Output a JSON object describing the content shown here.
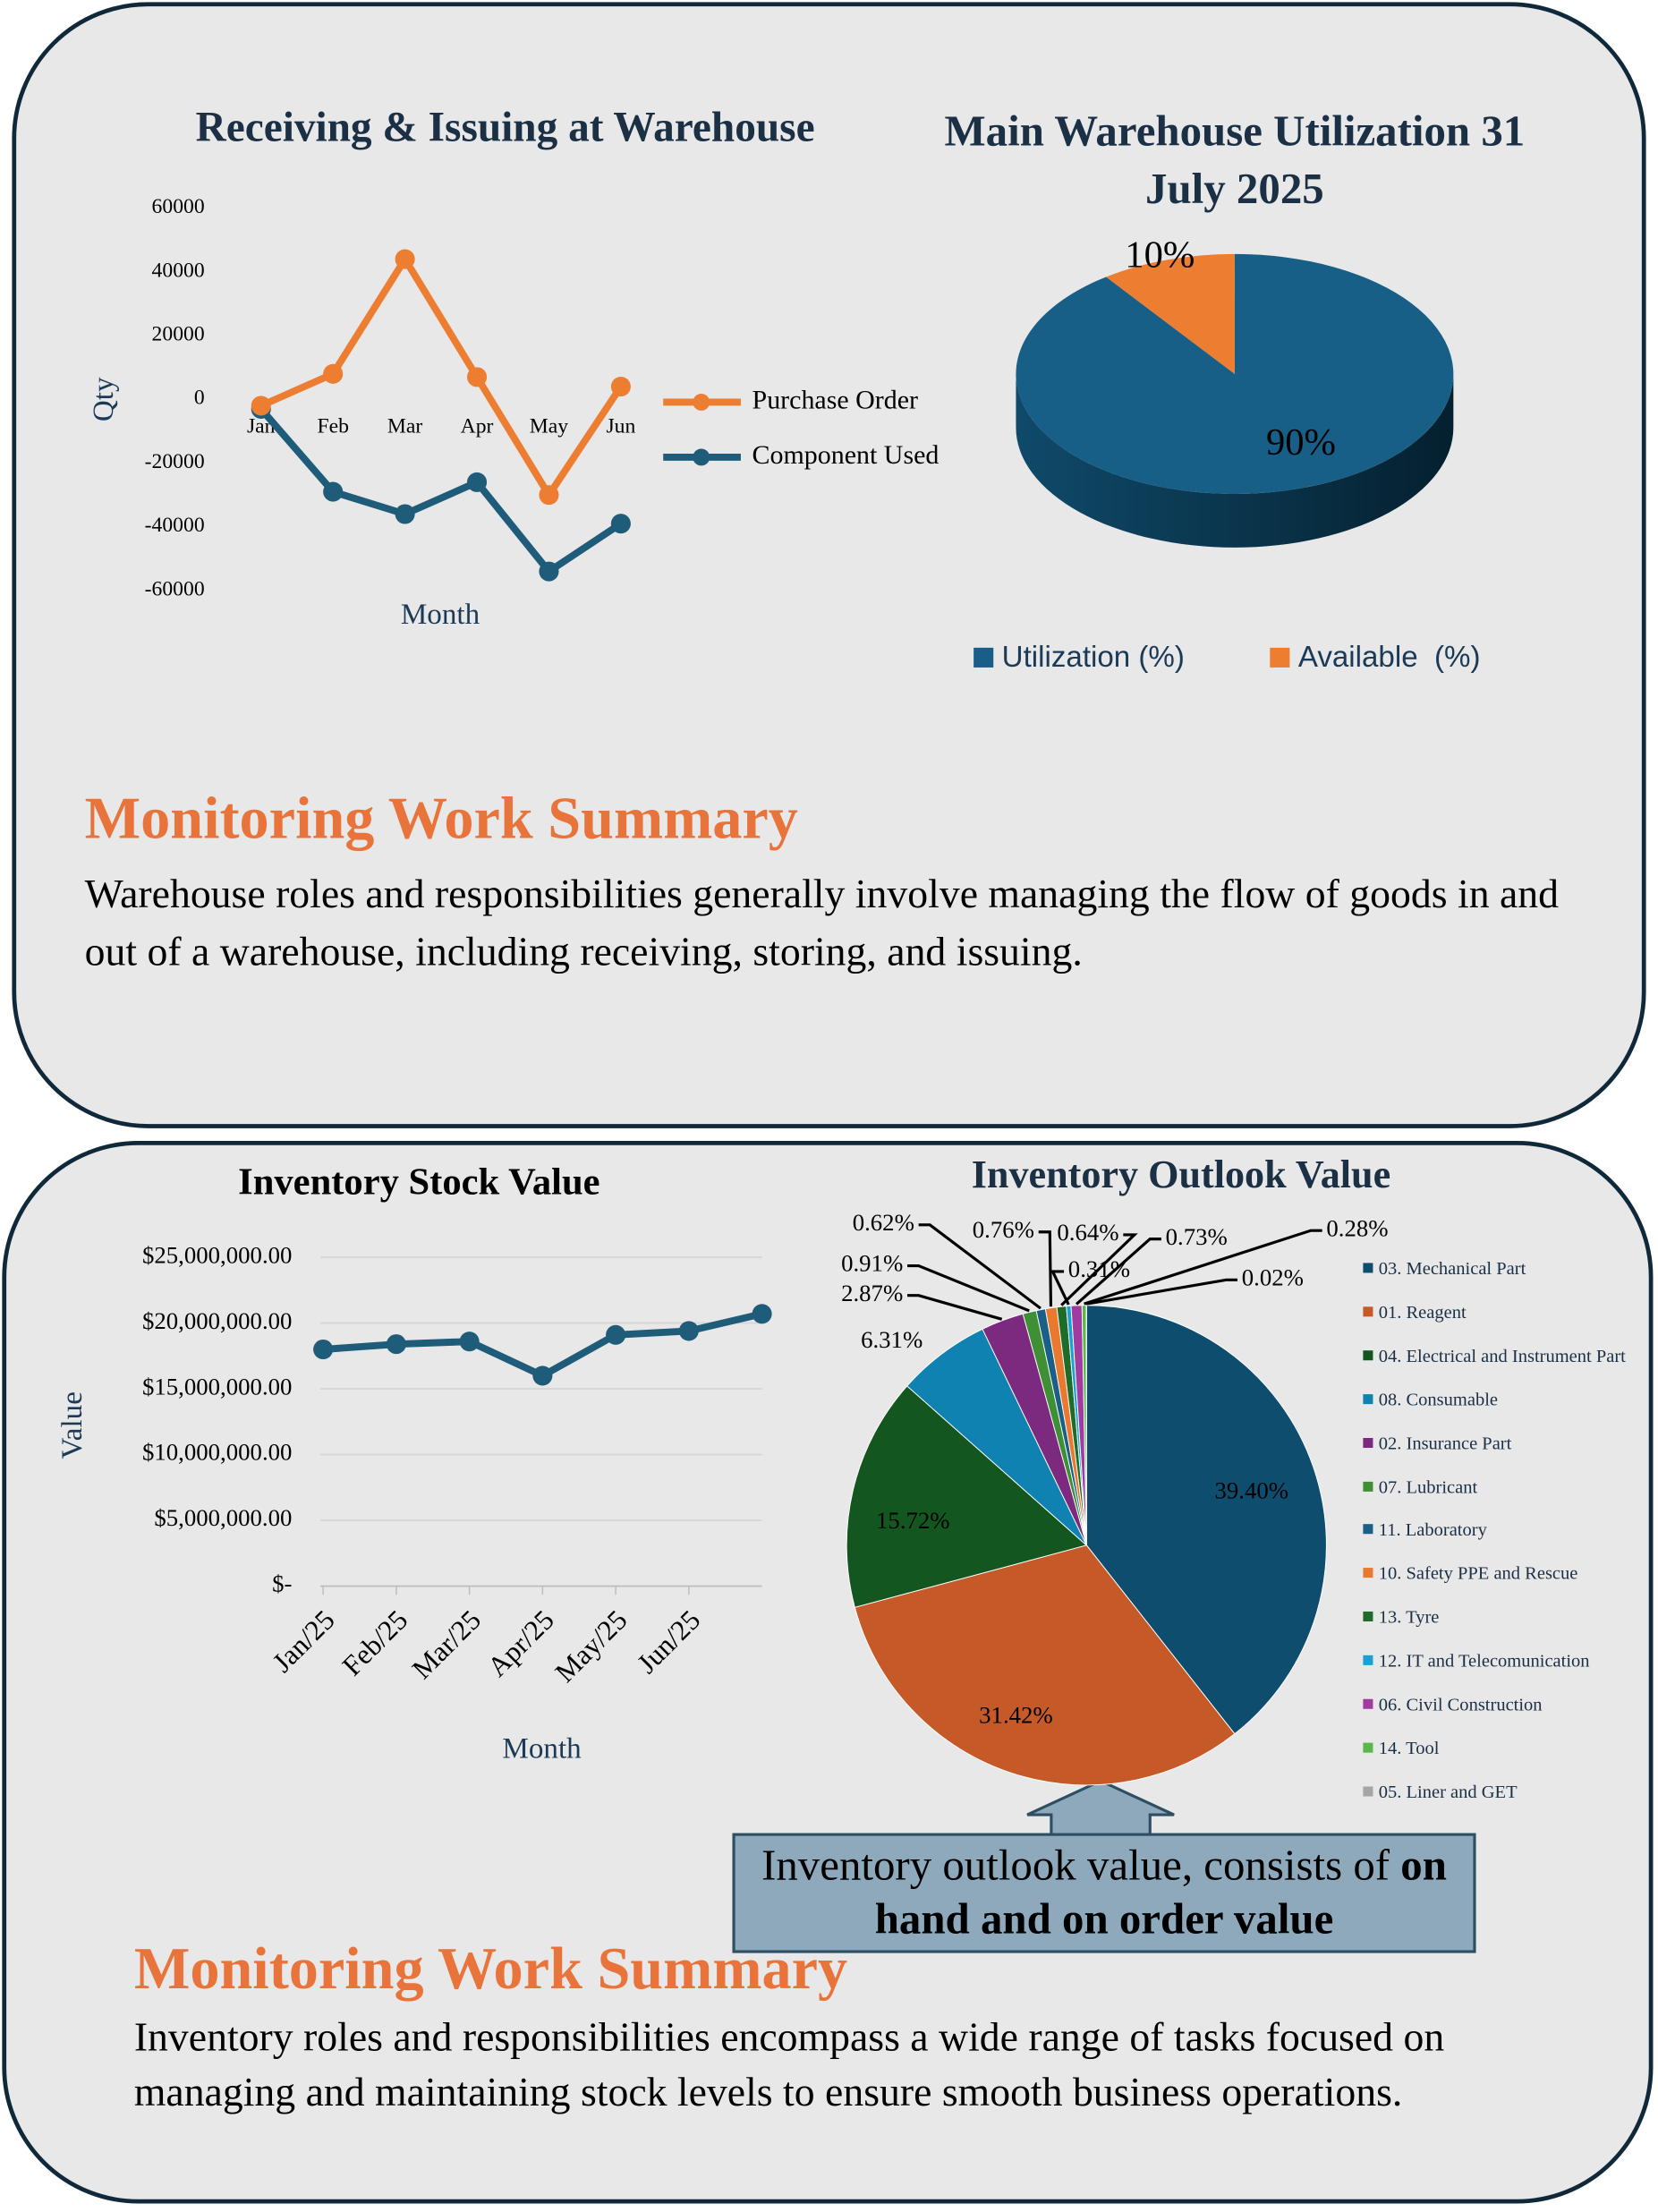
{
  "chart_data": [
    {
      "type": "line",
      "title": "Receiving & Issuing at Warehouse",
      "x_label": "Month",
      "y_label": "Qty",
      "categories": [
        "Jan",
        "Feb",
        "Mar",
        "Apr",
        "May",
        "Jun"
      ],
      "series": [
        {
          "name": "Purchase Order",
          "color": "#ed7d31",
          "values": [
            -2000,
            8000,
            44000,
            7000,
            -30000,
            4000
          ]
        },
        {
          "name": "Component Used",
          "color": "#1f5c7a",
          "values": [
            -3000,
            -29000,
            -36000,
            -26000,
            -54000,
            -39000
          ]
        }
      ],
      "ylim": [
        -60000,
        60000
      ],
      "yticks": [
        -60000,
        -40000,
        -20000,
        0,
        20000,
        40000,
        60000
      ],
      "grid": false,
      "legend": "right"
    },
    {
      "type": "pie3d",
      "title": "Main Warehouse Utilization 31 July 2025",
      "categories": [
        "Utilization (%)",
        "Available  (%)"
      ],
      "values": [
        90,
        10
      ],
      "value_labels": [
        "90%",
        "10%"
      ],
      "colors": [
        "#175f86",
        "#ed7d31"
      ],
      "legend": "bottom"
    },
    {
      "type": "line",
      "title": "Inventory Stock Value",
      "x_label": "Month",
      "y_label": "Value",
      "categories": [
        "Jan/25",
        "Feb/25",
        "Mar/25",
        "Apr/25",
        "May/25",
        "Jun/25",
        null
      ],
      "series": [
        {
          "name": "Value",
          "color": "#1f5c7a",
          "values": [
            18000000,
            18400000,
            18600000,
            16000000,
            19100000,
            19400000,
            20700000
          ]
        }
      ],
      "ylim": [
        0,
        25000000
      ],
      "yticks": [
        {
          "value": 0,
          "label": "$-"
        },
        {
          "value": 5000000,
          "label": "$5,000,000.00"
        },
        {
          "value": 10000000,
          "label": "$10,000,000.00"
        },
        {
          "value": 15000000,
          "label": "$15,000,000.00"
        },
        {
          "value": 20000000,
          "label": "$20,000,000.00"
        },
        {
          "value": 25000000,
          "label": "$25,000,000.00"
        }
      ],
      "grid": true
    },
    {
      "type": "pie",
      "title": "Inventory Outlook Value",
      "categories": [
        "03. Mechanical Part",
        "01. Reagent",
        "04. Electrical  and Instrument Part",
        "08. Consumable",
        "02. Insurance Part",
        "07. Lubricant",
        "11. Laboratory",
        "10. Safety PPE and Rescue",
        "13. Tyre",
        "12. IT and Telecomunication",
        "06. Civil Construction",
        "14. Tool",
        "05. Liner and GET"
      ],
      "values": [
        39.4,
        31.42,
        15.72,
        6.31,
        2.87,
        0.91,
        0.62,
        0.76,
        0.64,
        0.31,
        0.73,
        0.28,
        0.02
      ],
      "value_labels": [
        "39.40%",
        "31.42%",
        "15.72%",
        "6.31%",
        "2.87%",
        "0.91%",
        "0.62%",
        "0.76%",
        "0.64%",
        "0.31%",
        "0.73%",
        "0.28%",
        "0.02%"
      ],
      "colors": [
        "#0e4d6e",
        "#c55a28",
        "#14561f",
        "#0f82b2",
        "#7b2a7f",
        "#3f8f36",
        "#1a5f86",
        "#e8792f",
        "#1e6b2a",
        "#19a1d6",
        "#a03ca0",
        "#58b84a",
        "#a5a5a5"
      ],
      "legend": "right"
    }
  ],
  "summaries": [
    {
      "title": "Monitoring Work Summary",
      "text": "Warehouse roles and responsibilities generally involve managing the flow of goods in and out of a warehouse, including receiving, storing, and issuing."
    },
    {
      "title": "Monitoring Work Summary",
      "text": "Inventory roles and responsibilities encompass a wide range of tasks focused on managing and maintaining stock levels to ensure smooth business operations."
    }
  ],
  "callout": {
    "text": "Inventory outlook value, consists of",
    "bold": "on hand and on order value"
  }
}
